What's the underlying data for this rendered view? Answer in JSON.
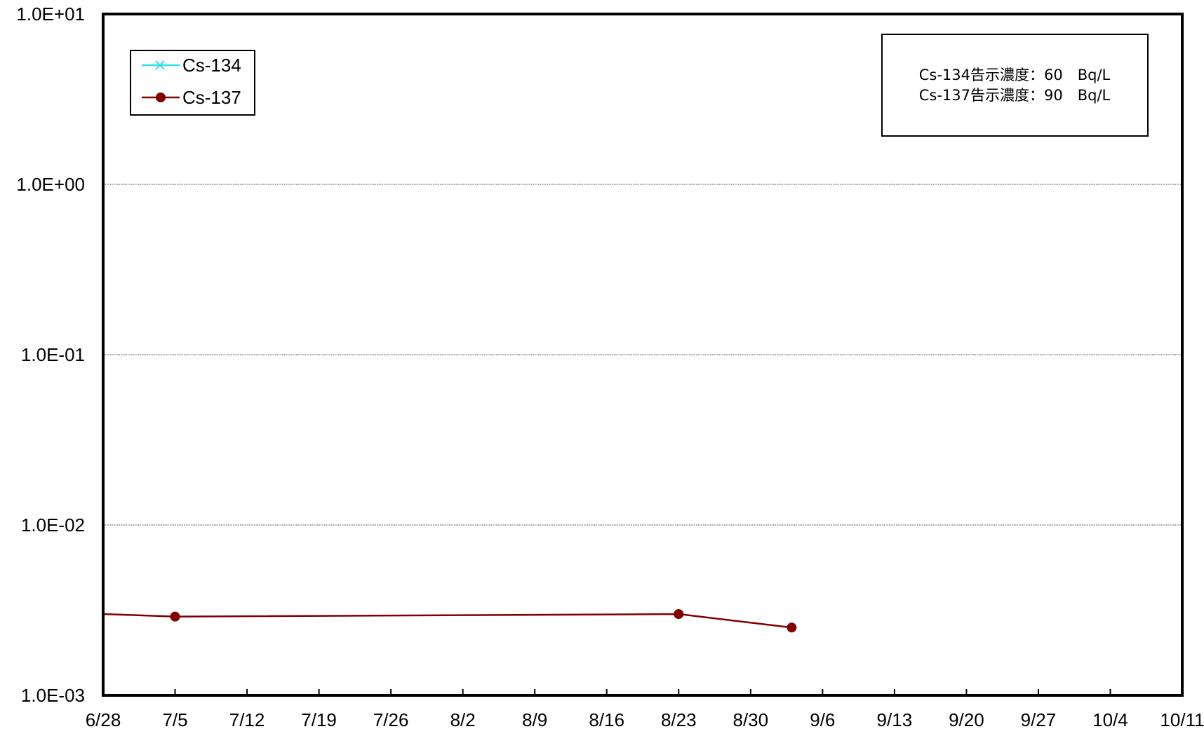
{
  "chart_data": {
    "type": "line",
    "title": "",
    "xlabel": "",
    "ylabel": "",
    "yscale": "log",
    "ylim": [
      0.001,
      10
    ],
    "y_ticks": [
      "1.0E+01",
      "1.0E+00",
      "1.0E-01",
      "1.0E-02",
      "1.0E-03"
    ],
    "x_ticks": [
      "6/28",
      "7/5",
      "7/12",
      "7/19",
      "7/26",
      "8/2",
      "8/9",
      "8/16",
      "8/23",
      "8/30",
      "9/6",
      "9/13",
      "9/20",
      "9/27",
      "10/4",
      "10/11"
    ],
    "xlim": [
      "6/28",
      "10/11"
    ],
    "grid": "horizontal at decades",
    "legend": "top-left",
    "series": [
      {
        "name": "Cs-134",
        "color": "#33e0e0",
        "marker": "x",
        "x": [],
        "y": []
      },
      {
        "name": "Cs-137",
        "color": "#800000",
        "marker": "circle",
        "x": [
          "6/28",
          "7/5",
          "8/23",
          "9/3"
        ],
        "y": [
          0.003,
          0.0029,
          0.003,
          0.0025
        ],
        "marked": [
          false,
          true,
          true,
          true
        ]
      }
    ],
    "annotation": {
      "line1": "Cs-134告示濃度：60　Bq/L",
      "line2": "Cs-137告示濃度：90　Bq/L"
    }
  }
}
